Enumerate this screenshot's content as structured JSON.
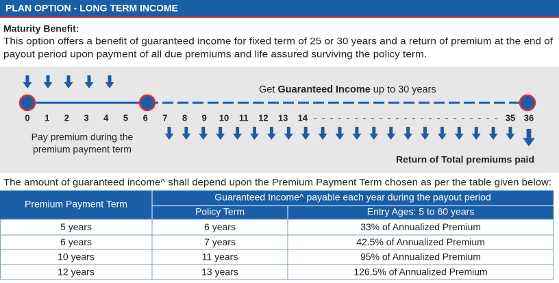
{
  "header": {
    "title": "PLAN OPTION - LONG TERM INCOME"
  },
  "maturity": {
    "heading": "Maturity Benefit:",
    "lines": [
      "This option offers a benefit of guaranteed income for fixed term of 25 or 30 years and a return of premium at the end of",
      "payout period upon payment of all due premiums and life assured surviving the policy term."
    ]
  },
  "timeline": {
    "income_prefix": "Get ",
    "income_bold": "Guaranteed Income",
    "income_suffix": " up to 30 years",
    "years": [
      0,
      1,
      2,
      3,
      4,
      5,
      6,
      7,
      8,
      9,
      10,
      11,
      12,
      13,
      14,
      35,
      36
    ],
    "premium_note": [
      "Pay premium during the",
      "premium payment term"
    ],
    "return_note": "Return of Total premiums paid"
  },
  "table_intro": "The amount of guaranteed income^ shall depend upon the Premium Payment Term chosen as per the table given below:",
  "table": {
    "col1": "Premium Payment Term",
    "group": "Guaranteed Income^ payable each year during the payout period",
    "col2": "Policy Term",
    "col3": "Entry Ages: 5 to 60 years",
    "rows": [
      [
        "5 years",
        "6 years",
        "33% of  Annualized Premium"
      ],
      [
        "6 years",
        "7 years",
        "42.5% of Annualized Premium"
      ],
      [
        "10 years",
        "11 years",
        "95% of Annualized Premium"
      ],
      [
        "12 years",
        "13 years",
        "126.5% of Annualized Premium"
      ]
    ]
  }
}
